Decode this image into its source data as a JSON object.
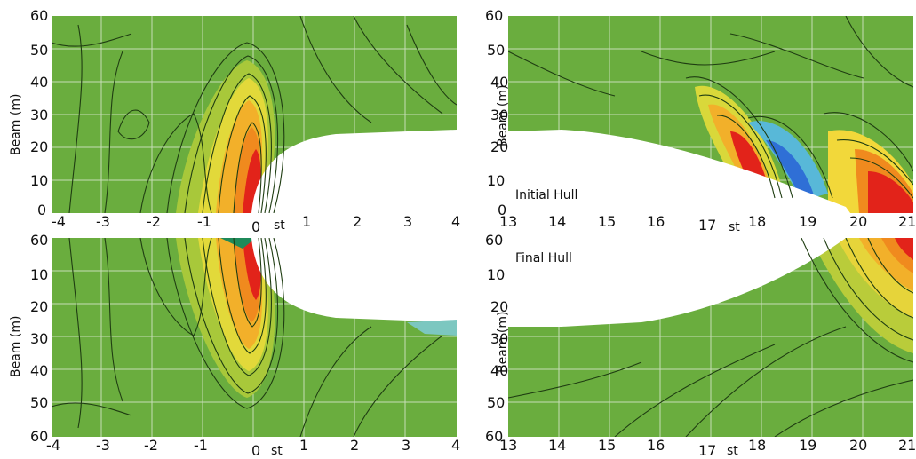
{
  "panels": {
    "top_left": {
      "y_axis_label": "Beam (m)",
      "y_ticks": [
        "60",
        "50",
        "40",
        "30",
        "20",
        "10",
        "0"
      ],
      "x_ticks": [
        "-4",
        "-3",
        "-2",
        "-1",
        "0",
        "st",
        "1",
        "2",
        "3",
        "4"
      ]
    },
    "top_right": {
      "label": "Initial Hull",
      "y_axis_label": "Beam (m)",
      "y_ticks": [
        "60",
        "50",
        "40",
        "30",
        "20",
        "10",
        "0"
      ],
      "x_ticks": [
        "13",
        "14",
        "15",
        "16",
        "17",
        "st",
        "18",
        "19",
        "20",
        "21"
      ]
    },
    "bottom_left": {
      "y_axis_label": "Beam (m)",
      "y_ticks": [
        "60",
        "10",
        "20",
        "30",
        "40",
        "50",
        "60"
      ],
      "x_ticks": [
        "-4",
        "-3",
        "-2",
        "-1",
        "0",
        "st",
        "1",
        "2",
        "3",
        "4"
      ]
    },
    "bottom_right": {
      "label": "Final Hull",
      "y_axis_label": "Beam (m)",
      "y_ticks": [
        "60",
        "10",
        "20",
        "30",
        "40",
        "50",
        "60"
      ],
      "x_ticks": [
        "13",
        "14",
        "15",
        "16",
        "17",
        "st",
        "18",
        "19",
        "20",
        "21"
      ]
    }
  },
  "colors": {
    "field_green": "#6aad3e",
    "hull": "#ffffff",
    "contour": "#1f3d12",
    "grid": "#dfe9d6",
    "peak_red": "#e2231a",
    "orange": "#f08a1e",
    "yellow": "#f2e33a",
    "trough_blue": "#2f6fd6"
  }
}
